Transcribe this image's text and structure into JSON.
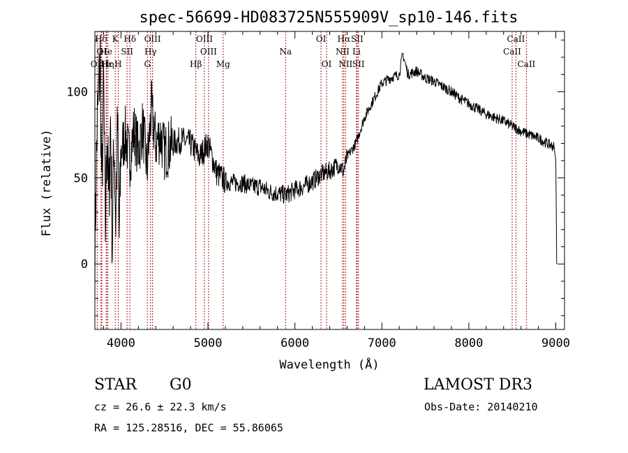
{
  "chart_data": {
    "type": "line",
    "title": "spec-56699-HD083725N555909V_sp10-146.fits",
    "xlabel": "Wavelength (Å)",
    "ylabel": "Flux (relative)",
    "xlim": [
      3700,
      9100
    ],
    "ylim": [
      -38,
      135
    ],
    "x_ticks": [
      4000,
      5000,
      6000,
      7000,
      8000,
      9000
    ],
    "y_ticks": [
      0,
      50,
      100
    ],
    "series": [
      {
        "name": "flux",
        "x": [
          3700,
          3720,
          3740,
          3760,
          3780,
          3800,
          3820,
          3840,
          3860,
          3880,
          3900,
          3920,
          3940,
          3960,
          3980,
          4000,
          4050,
          4100,
          4150,
          4200,
          4250,
          4300,
          4350,
          4400,
          4450,
          4500,
          4600,
          4700,
          4800,
          4900,
          5000,
          5100,
          5200,
          5300,
          5400,
          5500,
          5600,
          5700,
          5800,
          5900,
          6000,
          6100,
          6200,
          6300,
          6400,
          6500,
          6560,
          6600,
          6700,
          6800,
          6900,
          7000,
          7100,
          7200,
          7240,
          7300,
          7400,
          7500,
          7600,
          7700,
          7800,
          7900,
          8000,
          8100,
          8200,
          8300,
          8400,
          8500,
          8600,
          8700,
          8800,
          8900,
          8980,
          9000,
          9010
        ],
        "y": [
          5,
          70,
          95,
          118,
          40,
          105,
          20,
          80,
          30,
          85,
          10,
          75,
          25,
          80,
          15,
          65,
          75,
          60,
          78,
          65,
          80,
          55,
          90,
          70,
          75,
          65,
          70,
          72,
          70,
          62,
          70,
          53,
          48,
          47,
          47,
          45,
          45,
          42,
          41,
          40,
          43,
          45,
          48,
          52,
          54,
          58,
          54,
          62,
          70,
          85,
          95,
          105,
          108,
          110,
          122,
          110,
          112,
          108,
          106,
          103,
          100,
          96,
          93,
          90,
          87,
          85,
          83,
          80,
          77,
          75,
          73,
          70,
          68,
          60,
          0
        ]
      }
    ],
    "line_markers": [
      {
        "label": "Hδ",
        "x": 3770,
        "row": 1
      },
      {
        "label": "OI",
        "x": 3780,
        "row": 2
      },
      {
        "label": "OII",
        "x": 3727,
        "row": 3
      },
      {
        "label": "Hε",
        "x": 3835,
        "row": 3
      },
      {
        "label": "Hη",
        "x": 3850,
        "row": 3
      },
      {
        "label": "He",
        "x": 3830,
        "row": 2
      },
      {
        "label": "K",
        "x": 3934,
        "row": 1
      },
      {
        "label": "H",
        "x": 3968,
        "row": 3
      },
      {
        "label": "SII",
        "x": 4070,
        "row": 2
      },
      {
        "label": "Hδ",
        "x": 4102,
        "row": 1
      },
      {
        "label": "OIII",
        "x": 4363,
        "row": 1
      },
      {
        "label": "Hγ",
        "x": 4340,
        "row": 2
      },
      {
        "label": "G",
        "x": 4304,
        "row": 3
      },
      {
        "label": "Hβ",
        "x": 4861,
        "row": 3
      },
      {
        "label": "OIII",
        "x": 4959,
        "row": 1
      },
      {
        "label": "OIII",
        "x": 5007,
        "row": 2
      },
      {
        "label": "Mg",
        "x": 5175,
        "row": 3
      },
      {
        "label": "Na",
        "x": 5893,
        "row": 2
      },
      {
        "label": "OI",
        "x": 6300,
        "row": 1
      },
      {
        "label": "OI",
        "x": 6364,
        "row": 3
      },
      {
        "label": "Hα",
        "x": 6563,
        "row": 1
      },
      {
        "label": "NII",
        "x": 6548,
        "row": 2
      },
      {
        "label": "NII",
        "x": 6583,
        "row": 3
      },
      {
        "label": "SII",
        "x": 6716,
        "row": 1
      },
      {
        "label": "Li",
        "x": 6708,
        "row": 2
      },
      {
        "label": "SII",
        "x": 6731,
        "row": 3
      },
      {
        "label": "CaII",
        "x": 8542,
        "row": 1
      },
      {
        "label": "CaII",
        "x": 8498,
        "row": 2
      },
      {
        "label": "CaII",
        "x": 8662,
        "row": 3
      }
    ]
  },
  "info": {
    "class_label": "STAR",
    "subclass": "G0",
    "survey": "LAMOST DR3",
    "cz": "cz = 26.6 ± 22.3 km/s",
    "obs_date": "Obs-Date: 20140210",
    "coords": "RA = 125.28516, DEC =  55.86065"
  }
}
